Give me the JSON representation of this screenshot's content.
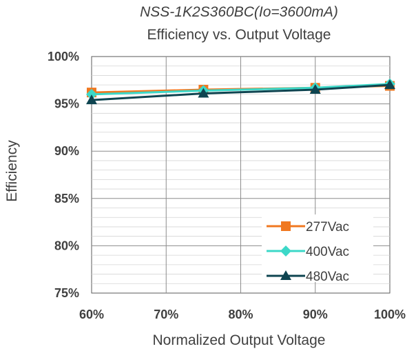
{
  "chart_data": {
    "type": "line",
    "title": "NSS-1K2S360BC(Io=3600mA)",
    "subtitle": "Efficiency vs. Output Voltage",
    "xlabel": "Normalized Output Voltage",
    "ylabel": "Efficiency",
    "x": [
      60,
      75,
      90,
      100
    ],
    "xlim": [
      60,
      100
    ],
    "ylim": [
      75,
      100
    ],
    "x_ticks": [
      60,
      70,
      80,
      90,
      100
    ],
    "y_ticks": [
      75,
      80,
      85,
      90,
      95,
      100
    ],
    "x_tick_labels": [
      "60%",
      "70%",
      "80%",
      "90%",
      "100%"
    ],
    "y_tick_labels": [
      "75%",
      "80%",
      "85%",
      "90%",
      "95%",
      "100%"
    ],
    "grid": true,
    "legend_position": "bottom-right",
    "series": [
      {
        "name": "277Vac",
        "values": [
          96.2,
          96.5,
          96.7,
          96.9
        ],
        "color": "#F07820",
        "marker": "square"
      },
      {
        "name": "400Vac",
        "values": [
          96.0,
          96.4,
          96.7,
          97.1
        ],
        "color": "#3CD8C8",
        "marker": "diamond"
      },
      {
        "name": "480Vac",
        "values": [
          95.4,
          96.1,
          96.5,
          97.0
        ],
        "color": "#0E4450",
        "marker": "triangle"
      }
    ]
  }
}
